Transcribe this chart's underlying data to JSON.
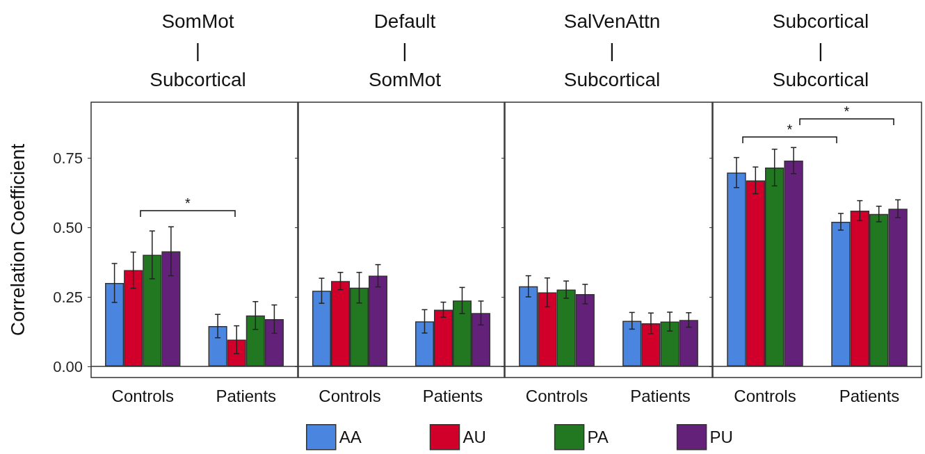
{
  "chart_data": [
    {
      "type": "bar",
      "title": "SomMot\n|\nSubcortical",
      "ylabel": "Correlation Coefficient",
      "categories": [
        "Controls",
        "Patients"
      ],
      "ylim": [
        -0.04,
        0.95
      ],
      "yticks": [
        {
          "value": 0,
          "label": "0.00"
        },
        {
          "value": 0.25,
          "label": "0.25"
        },
        {
          "value": 0.5,
          "label": "0.50"
        },
        {
          "value": 0.75,
          "label": "0.75"
        }
      ],
      "grid": false,
      "legend": "bottom",
      "ref_lines": [
        {
          "axis": "y",
          "value": 0
        }
      ],
      "annotations": [
        "*"
      ],
      "series": [
        {
          "name": "AA",
          "color": "#4a86e0",
          "values": [
            0.3,
            0.145
          ],
          "errors": [
            0.07,
            0.042
          ]
        },
        {
          "name": "AU",
          "color": "#d0002a",
          "values": [
            0.346,
            0.096
          ],
          "errors": [
            0.065,
            0.05
          ]
        },
        {
          "name": "PA",
          "color": "#217821",
          "values": [
            0.401,
            0.183
          ],
          "errors": [
            0.086,
            0.05
          ]
        },
        {
          "name": "PU",
          "color": "#64217a",
          "values": [
            0.414,
            0.17
          ],
          "errors": [
            0.088,
            0.051
          ]
        }
      ]
    },
    {
      "type": "bar",
      "title": "Default\n|\nSomMot",
      "categories": [
        "Controls",
        "Patients"
      ],
      "ylim": [
        -0.04,
        0.95
      ],
      "yticks": [
        0,
        0.25,
        0.5,
        0.75
      ],
      "tick_labels": "x",
      "grid": false,
      "ref_lines": [
        {
          "axis": "y",
          "value": 0
        }
      ],
      "series": [
        {
          "color": "#4a86e0",
          "values": [
            0.272,
            0.162
          ],
          "errors": [
            0.045,
            0.042
          ]
        },
        {
          "color": "#d0002a",
          "values": [
            0.307,
            0.204
          ],
          "errors": [
            0.031,
            0.027
          ]
        },
        {
          "color": "#217821",
          "values": [
            0.283,
            0.237
          ],
          "errors": [
            0.055,
            0.047
          ]
        },
        {
          "color": "#64217a",
          "values": [
            0.326,
            0.192
          ],
          "errors": [
            0.04,
            0.043
          ]
        }
      ]
    },
    {
      "type": "bar",
      "title": "SalVenAttn\n|\nSubcortical",
      "categories": [
        "Controls",
        "Patients"
      ],
      "ylim": [
        -0.04,
        0.95
      ],
      "yticks": [
        0,
        0.25,
        0.5,
        0.75
      ],
      "tick_labels": "x",
      "grid": false,
      "ref_lines": [
        {
          "axis": "y",
          "value": 0
        }
      ],
      "series": [
        {
          "color": "#4a86e0",
          "values": [
            0.288,
            0.164
          ],
          "errors": [
            0.038,
            0.03
          ]
        },
        {
          "color": "#d0002a",
          "values": [
            0.266,
            0.155
          ],
          "errors": [
            0.052,
            0.037
          ]
        },
        {
          "color": "#217821",
          "values": [
            0.276,
            0.161
          ],
          "errors": [
            0.031,
            0.034
          ]
        },
        {
          "color": "#64217a",
          "values": [
            0.26,
            0.167
          ],
          "errors": [
            0.035,
            0.026
          ]
        }
      ]
    },
    {
      "type": "bar",
      "title": "Subcortical\n|\nSubcortical",
      "categories": [
        "Controls",
        "Patients"
      ],
      "ylim": [
        -0.04,
        0.95
      ],
      "yticks": [
        0,
        0.25,
        0.5,
        0.75
      ],
      "tick_labels": "x",
      "grid": false,
      "ref_lines": [
        {
          "axis": "y",
          "value": 0
        }
      ],
      "annotations": [
        "*",
        "*"
      ],
      "series": [
        {
          "color": "#4a86e0",
          "values": [
            0.697,
            0.52
          ],
          "errors": [
            0.054,
            0.03
          ]
        },
        {
          "color": "#d0002a",
          "values": [
            0.669,
            0.56
          ],
          "errors": [
            0.048,
            0.036
          ]
        },
        {
          "color": "#217821",
          "values": [
            0.715,
            0.548
          ],
          "errors": [
            0.066,
            0.028
          ]
        },
        {
          "color": "#64217a",
          "values": [
            0.74,
            0.567
          ],
          "errors": [
            0.047,
            0.032
          ]
        }
      ]
    }
  ]
}
